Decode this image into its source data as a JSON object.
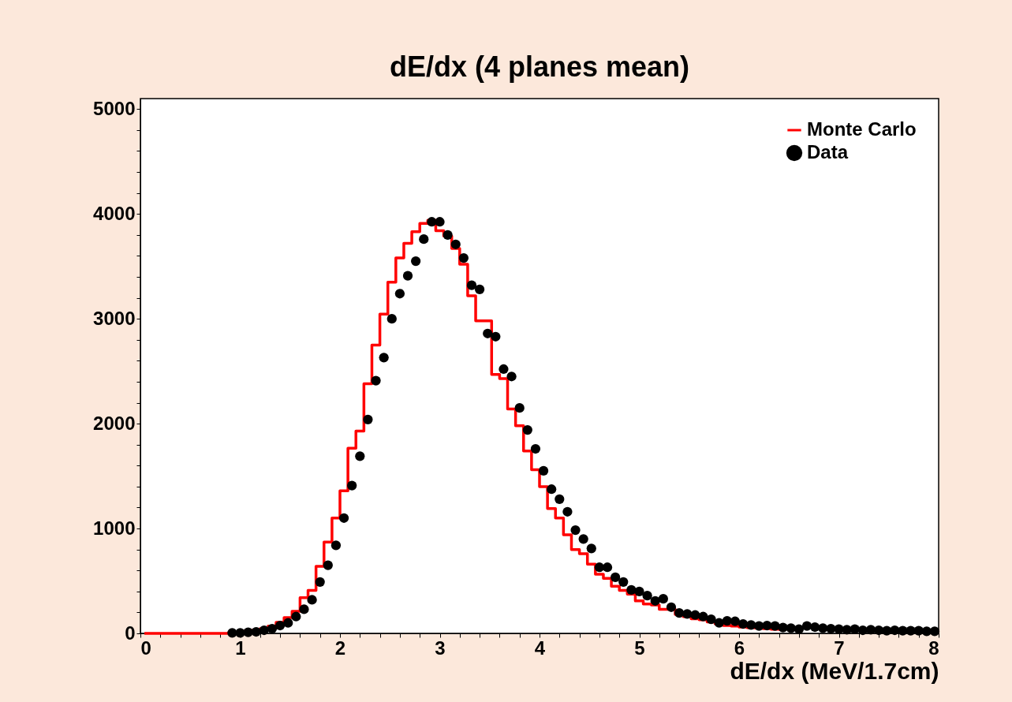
{
  "chart_data": {
    "type": "step",
    "title": "dE/dx (4 planes mean)",
    "xlabel": "dE/dx (MeV/1.7cm)",
    "x": [
      0.04,
      0.12,
      0.2,
      0.28,
      0.36,
      0.44,
      0.52,
      0.6,
      0.68,
      0.76,
      0.84,
      0.92,
      1.0,
      1.08,
      1.16,
      1.24,
      1.32,
      1.4,
      1.48,
      1.56,
      1.64,
      1.72,
      1.8,
      1.88,
      1.96,
      2.04,
      2.12,
      2.2,
      2.28,
      2.36,
      2.44,
      2.52,
      2.6,
      2.68,
      2.76,
      2.84,
      2.92,
      3.0,
      3.08,
      3.16,
      3.24,
      3.32,
      3.4,
      3.48,
      3.56,
      3.64,
      3.72,
      3.8,
      3.88,
      3.96,
      4.04,
      4.12,
      4.2,
      4.28,
      4.36,
      4.44,
      4.52,
      4.6,
      4.68,
      4.76,
      4.84,
      4.92,
      5.0,
      5.08,
      5.16,
      5.24,
      5.32,
      5.4,
      5.48,
      5.56,
      5.64,
      5.72,
      5.8,
      5.88,
      5.96,
      6.04,
      6.12,
      6.2,
      6.28,
      6.36,
      6.44,
      6.52,
      6.6,
      6.68,
      6.76,
      6.84,
      6.92,
      7.0,
      7.08,
      7.16,
      7.24,
      7.32,
      7.4,
      7.48,
      7.56,
      7.64,
      7.72,
      7.8,
      7.88,
      7.96
    ],
    "series": [
      {
        "name": "Monte Carlo",
        "color": "#ff0000",
        "values": [
          0,
          0,
          0,
          0,
          0,
          0,
          0,
          0,
          0,
          0,
          0,
          5,
          10,
          20,
          30,
          45,
          70,
          105,
          150,
          210,
          340,
          410,
          640,
          870,
          1100,
          1360,
          1765,
          1930,
          2380,
          2750,
          3045,
          3350,
          3580,
          3720,
          3830,
          3910,
          3940,
          3840,
          3790,
          3670,
          3520,
          3220,
          2980,
          2980,
          2470,
          2430,
          2140,
          1980,
          1740,
          1560,
          1400,
          1190,
          1100,
          940,
          800,
          760,
          660,
          565,
          525,
          450,
          410,
          375,
          310,
          280,
          270,
          230,
          230,
          180,
          160,
          140,
          130,
          110,
          90,
          75,
          70,
          60,
          55,
          50,
          45,
          40,
          38,
          null,
          null,
          null,
          null,
          null,
          null,
          null,
          null,
          null,
          null,
          null,
          null,
          null,
          null,
          null,
          null,
          null,
          null,
          null
        ]
      },
      {
        "name": "Data",
        "type": "scatter",
        "marker": "circle",
        "color": "#000000",
        "values": [
          null,
          null,
          null,
          null,
          null,
          null,
          null,
          null,
          null,
          null,
          null,
          5,
          5,
          10,
          15,
          30,
          45,
          75,
          100,
          160,
          230,
          320,
          490,
          650,
          840,
          1100,
          1410,
          1690,
          2040,
          2410,
          2630,
          3000,
          3240,
          3410,
          3550,
          3760,
          3925,
          3925,
          3800,
          3710,
          3580,
          3320,
          3280,
          2860,
          2830,
          2520,
          2450,
          2150,
          1940,
          1760,
          1550,
          1375,
          1280,
          1160,
          985,
          900,
          810,
          630,
          630,
          535,
          490,
          415,
          400,
          360,
          310,
          330,
          250,
          195,
          185,
          175,
          160,
          135,
          100,
          120,
          115,
          90,
          80,
          70,
          75,
          70,
          55,
          50,
          40,
          70,
          60,
          50,
          45,
          40,
          35,
          40,
          30,
          35,
          30,
          25,
          30,
          25,
          25,
          25,
          20,
          20
        ]
      }
    ],
    "xlim": [
      0,
      8
    ],
    "ylim": [
      0,
      5100
    ],
    "xticks": [
      0,
      {
        "value": 0.2,
        "label": null
      },
      {
        "value": 0.4,
        "label": null
      },
      {
        "value": 0.6,
        "label": null
      },
      {
        "value": 0.8,
        "label": null
      },
      1,
      {
        "value": 1.2,
        "label": null
      },
      {
        "value": 1.4,
        "label": null
      },
      {
        "value": 1.6,
        "label": null
      },
      {
        "value": 1.8,
        "label": null
      },
      2,
      {
        "value": 2.2,
        "label": null
      },
      {
        "value": 2.4,
        "label": null
      },
      {
        "value": 2.6,
        "label": null
      },
      {
        "value": 2.8,
        "label": null
      },
      3,
      {
        "value": 3.2,
        "label": null
      },
      {
        "value": 3.4,
        "label": null
      },
      {
        "value": 3.6,
        "label": null
      },
      {
        "value": 3.8,
        "label": null
      },
      4,
      {
        "value": 4.2,
        "label": null
      },
      {
        "value": 4.4,
        "label": null
      },
      {
        "value": 4.6,
        "label": null
      },
      {
        "value": 4.8,
        "label": null
      },
      5,
      {
        "value": 5.2,
        "label": null
      },
      {
        "value": 5.4,
        "label": null
      },
      {
        "value": 5.6,
        "label": null
      },
      {
        "value": 5.8,
        "label": null
      },
      6,
      {
        "value": 6.2,
        "label": null
      },
      {
        "value": 6.4,
        "label": null
      },
      {
        "value": 6.6,
        "label": null
      },
      {
        "value": 6.8,
        "label": null
      },
      7,
      {
        "value": 7.2,
        "label": null
      },
      {
        "value": 7.4,
        "label": null
      },
      {
        "value": 7.6,
        "label": null
      },
      {
        "value": 7.8,
        "label": null
      },
      8
    ],
    "yticks": [
      0,
      {
        "value": 200,
        "label": null
      },
      {
        "value": 400,
        "label": null
      },
      {
        "value": 600,
        "label": null
      },
      {
        "value": 800,
        "label": null
      },
      1000,
      {
        "value": 1200,
        "label": null
      },
      {
        "value": 1400,
        "label": null
      },
      {
        "value": 1600,
        "label": null
      },
      {
        "value": 1800,
        "label": null
      },
      2000,
      {
        "value": 2200,
        "label": null
      },
      {
        "value": 2400,
        "label": null
      },
      {
        "value": 2600,
        "label": null
      },
      {
        "value": 2800,
        "label": null
      },
      3000,
      {
        "value": 3200,
        "label": null
      },
      {
        "value": 3400,
        "label": null
      },
      {
        "value": 3600,
        "label": null
      },
      {
        "value": 3800,
        "label": null
      },
      4000,
      {
        "value": 4200,
        "label": null
      },
      {
        "value": 4400,
        "label": null
      },
      {
        "value": 4600,
        "label": null
      },
      {
        "value": 4800,
        "label": null
      },
      5000
    ],
    "grid": false,
    "legend": "top right",
    "line_style": "solid"
  }
}
